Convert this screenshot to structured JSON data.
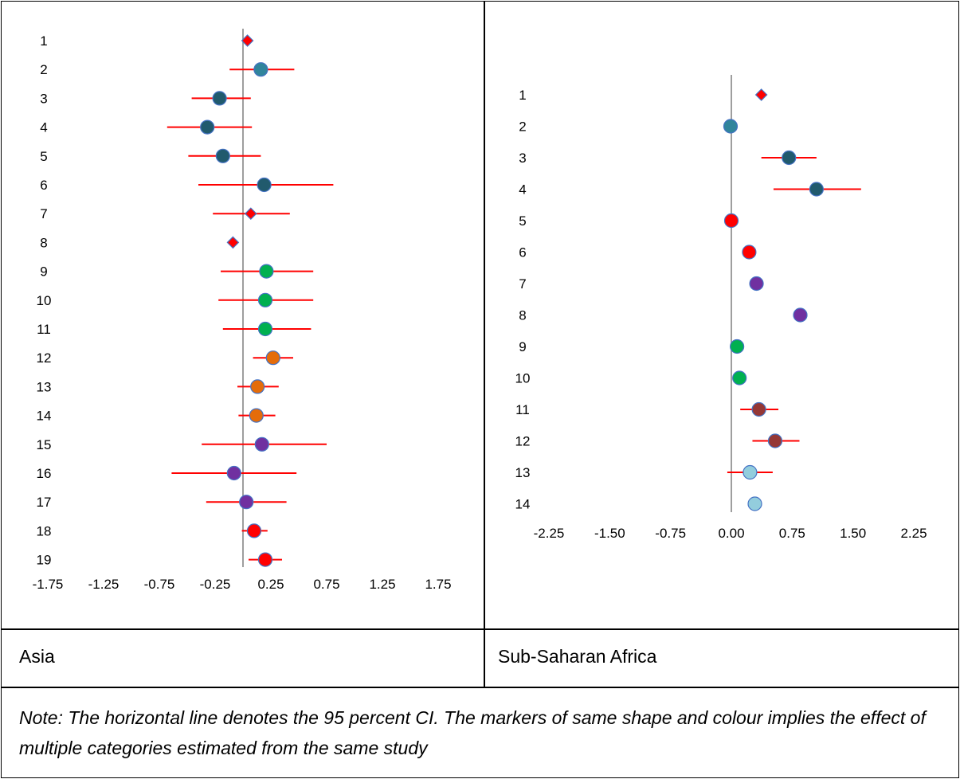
{
  "captions": {
    "left": "Asia",
    "right": "Sub-Saharan Africa"
  },
  "note": "Note: The horizontal line denotes the 95 percent CI. The markers of same shape and colour implies the effect of multiple categories estimated from the same study",
  "colors": {
    "ci_line": "#ff0000",
    "zero_line": "#7f7f7f",
    "marker_stroke": "#4472c4",
    "diamond_fill": "#ff0000",
    "teal": "#31859c",
    "dark_teal": "#215a6d",
    "green": "#00b050",
    "orange": "#e46c0a",
    "purple": "#7030a0",
    "red": "#ff0000",
    "brown": "#953735",
    "light_blue": "#93cddd"
  },
  "chart_data": [
    {
      "type": "scatter",
      "name": "Asia",
      "xticks": [
        "-1.75",
        "-1.25",
        "-0.75",
        "-0.25",
        "0.25",
        "0.75",
        "1.25",
        "1.75"
      ],
      "xtick_values": [
        -1.75,
        -1.25,
        -0.75,
        -0.25,
        0.25,
        0.75,
        1.25,
        1.75
      ],
      "xlim": [
        -1.75,
        1.75
      ],
      "rows": [
        {
          "label": "1",
          "estimate": 0.04,
          "lo": null,
          "hi": null,
          "marker": "diamond",
          "color": "diamond_fill"
        },
        {
          "label": "2",
          "estimate": 0.16,
          "lo": -0.12,
          "hi": 0.46,
          "marker": "circle",
          "color": "teal"
        },
        {
          "label": "3",
          "estimate": -0.21,
          "lo": -0.46,
          "hi": 0.07,
          "marker": "circle",
          "color": "dark_teal"
        },
        {
          "label": "4",
          "estimate": -0.32,
          "lo": -0.68,
          "hi": 0.08,
          "marker": "circle",
          "color": "dark_teal"
        },
        {
          "label": "5",
          "estimate": -0.18,
          "lo": -0.49,
          "hi": 0.16,
          "marker": "circle",
          "color": "dark_teal"
        },
        {
          "label": "6",
          "estimate": 0.19,
          "lo": -0.4,
          "hi": 0.81,
          "marker": "circle",
          "color": "dark_teal"
        },
        {
          "label": "7",
          "estimate": 0.07,
          "lo": -0.27,
          "hi": 0.42,
          "marker": "diamond",
          "color": "diamond_fill"
        },
        {
          "label": "8",
          "estimate": -0.09,
          "lo": null,
          "hi": null,
          "marker": "diamond",
          "color": "diamond_fill"
        },
        {
          "label": "9",
          "estimate": 0.21,
          "lo": -0.2,
          "hi": 0.63,
          "marker": "circle",
          "color": "green"
        },
        {
          "label": "10",
          "estimate": 0.2,
          "lo": -0.22,
          "hi": 0.63,
          "marker": "circle",
          "color": "green"
        },
        {
          "label": "11",
          "estimate": 0.2,
          "lo": -0.18,
          "hi": 0.61,
          "marker": "circle",
          "color": "green"
        },
        {
          "label": "12",
          "estimate": 0.27,
          "lo": 0.09,
          "hi": 0.45,
          "marker": "circle",
          "color": "orange"
        },
        {
          "label": "13",
          "estimate": 0.13,
          "lo": -0.05,
          "hi": 0.32,
          "marker": "circle",
          "color": "orange"
        },
        {
          "label": "14",
          "estimate": 0.12,
          "lo": -0.04,
          "hi": 0.29,
          "marker": "circle",
          "color": "orange"
        },
        {
          "label": "15",
          "estimate": 0.17,
          "lo": -0.37,
          "hi": 0.75,
          "marker": "circle",
          "color": "purple"
        },
        {
          "label": "16",
          "estimate": -0.08,
          "lo": -0.64,
          "hi": 0.48,
          "marker": "circle",
          "color": "purple"
        },
        {
          "label": "17",
          "estimate": 0.03,
          "lo": -0.33,
          "hi": 0.39,
          "marker": "circle",
          "color": "purple"
        },
        {
          "label": "18",
          "estimate": 0.1,
          "lo": -0.01,
          "hi": 0.22,
          "marker": "circle",
          "color": "red"
        },
        {
          "label": "19",
          "estimate": 0.2,
          "lo": 0.05,
          "hi": 0.35,
          "marker": "circle",
          "color": "red"
        }
      ]
    },
    {
      "type": "scatter",
      "name": "Sub-Saharan Africa",
      "xticks": [
        "-2.25",
        "-1.50",
        "-0.75",
        "0.00",
        "0.75",
        "1.50",
        "2.25"
      ],
      "xtick_values": [
        -2.25,
        -1.5,
        -0.75,
        0.0,
        0.75,
        1.5,
        2.25
      ],
      "xlim": [
        -2.25,
        2.25
      ],
      "rows": [
        {
          "label": "1",
          "estimate": 0.37,
          "lo": null,
          "hi": null,
          "marker": "diamond",
          "color": "diamond_fill"
        },
        {
          "label": "2",
          "estimate": -0.01,
          "lo": null,
          "hi": null,
          "marker": "circle",
          "color": "teal"
        },
        {
          "label": "3",
          "estimate": 0.71,
          "lo": 0.37,
          "hi": 1.05,
          "marker": "circle",
          "color": "dark_teal"
        },
        {
          "label": "4",
          "estimate": 1.05,
          "lo": 0.52,
          "hi": 1.6,
          "marker": "circle",
          "color": "dark_teal"
        },
        {
          "label": "5",
          "estimate": 0.0,
          "lo": null,
          "hi": null,
          "marker": "circle",
          "color": "red"
        },
        {
          "label": "6",
          "estimate": 0.22,
          "lo": null,
          "hi": null,
          "marker": "circle",
          "color": "red"
        },
        {
          "label": "7",
          "estimate": 0.31,
          "lo": null,
          "hi": null,
          "marker": "circle",
          "color": "purple"
        },
        {
          "label": "8",
          "estimate": 0.85,
          "lo": null,
          "hi": null,
          "marker": "circle",
          "color": "purple"
        },
        {
          "label": "9",
          "estimate": 0.07,
          "lo": null,
          "hi": null,
          "marker": "circle",
          "color": "green"
        },
        {
          "label": "10",
          "estimate": 0.1,
          "lo": null,
          "hi": null,
          "marker": "circle",
          "color": "green"
        },
        {
          "label": "11",
          "estimate": 0.34,
          "lo": 0.11,
          "hi": 0.58,
          "marker": "circle",
          "color": "brown"
        },
        {
          "label": "12",
          "estimate": 0.54,
          "lo": 0.26,
          "hi": 0.84,
          "marker": "circle",
          "color": "brown"
        },
        {
          "label": "13",
          "estimate": 0.23,
          "lo": -0.05,
          "hi": 0.51,
          "marker": "circle",
          "color": "light_blue"
        },
        {
          "label": "14",
          "estimate": 0.29,
          "lo": null,
          "hi": null,
          "marker": "circle",
          "color": "light_blue"
        }
      ]
    }
  ]
}
